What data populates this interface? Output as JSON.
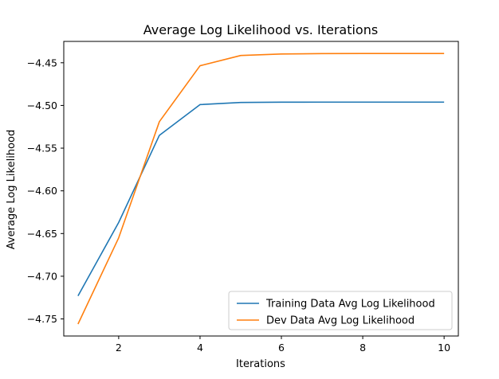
{
  "chart_data": {
    "type": "line",
    "title": "Average Log Likelihood vs. Iterations",
    "xlabel": "Iterations",
    "ylabel": "Average Log Likelihood",
    "xlim": [
      0.65,
      10.35
    ],
    "ylim": [
      -4.77,
      -4.425
    ],
    "xticks": [
      2,
      4,
      6,
      8,
      10
    ],
    "yticks": [
      -4.75,
      -4.7,
      -4.65,
      -4.6,
      -4.55,
      -4.5,
      -4.45
    ],
    "ytick_labels": [
      "−4.75",
      "−4.70",
      "−4.65",
      "−4.60",
      "−4.55",
      "−4.50",
      "−4.45"
    ],
    "grid": false,
    "legend_position": "lower-right",
    "x": [
      1,
      2,
      3,
      4,
      5,
      6,
      7,
      8,
      9,
      10
    ],
    "series": [
      {
        "name": "Training Data Avg Log Likelihood",
        "color": "#1f77b4",
        "values": [
          -4.723,
          -4.637,
          -4.535,
          -4.499,
          -4.4965,
          -4.4962,
          -4.4961,
          -4.4961,
          -4.4961,
          -4.4961
        ]
      },
      {
        "name": "Dev Data Avg Log Likelihood",
        "color": "#ff7f0e",
        "values": [
          -4.756,
          -4.655,
          -4.519,
          -4.4535,
          -4.4415,
          -4.4397,
          -4.4393,
          -4.4392,
          -4.4392,
          -4.4392
        ]
      }
    ]
  }
}
